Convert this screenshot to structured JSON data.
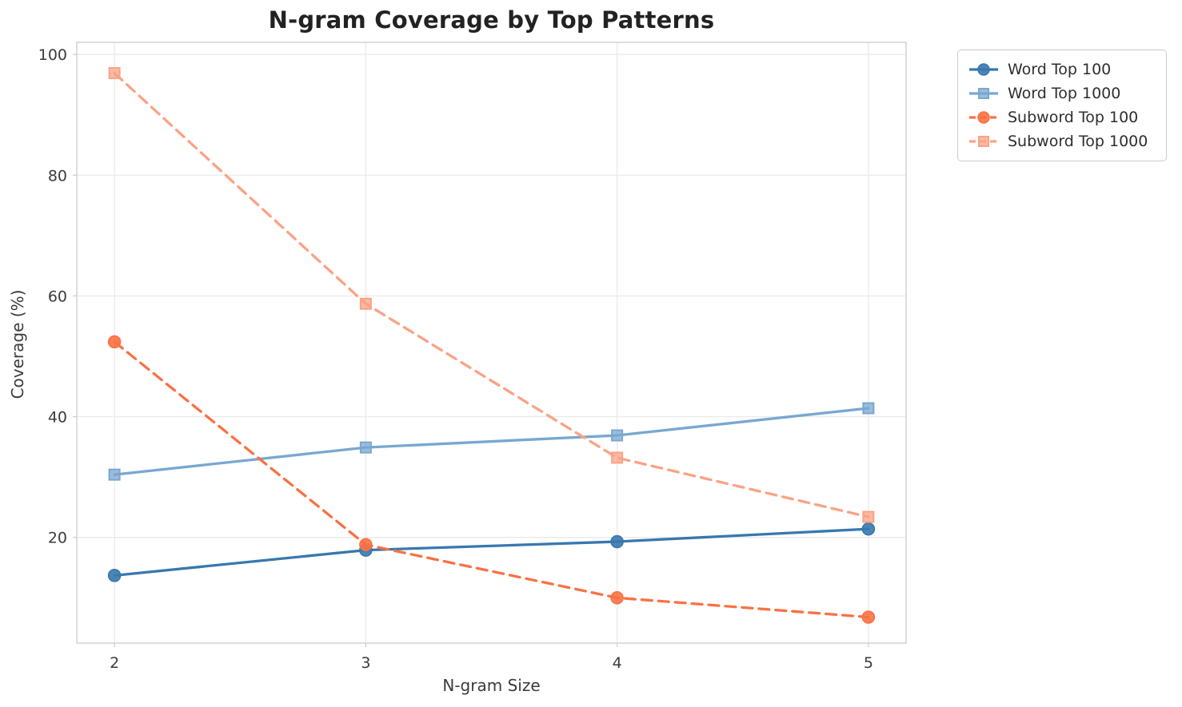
{
  "title": "N-gram Coverage by Top Patterns",
  "chart_data": {
    "type": "line",
    "title": "N-gram Coverage by Top Patterns",
    "xlabel": "N-gram Size",
    "ylabel": "Coverage (%)",
    "x": [
      2,
      3,
      4,
      5
    ],
    "xticks": [
      2,
      3,
      4,
      5
    ],
    "yticks": [
      20,
      40,
      60,
      80,
      100
    ],
    "xlim": [
      1.85,
      5.15
    ],
    "ylim": [
      2.5,
      102
    ],
    "grid": true,
    "legend_position": "upper right outside plot",
    "series": [
      {
        "name": "Word Top 100",
        "values": [
          13.7,
          17.9,
          19.3,
          21.4
        ],
        "color": "#3778ae",
        "marker": "circle",
        "line_style": "solid"
      },
      {
        "name": "Word Top 1000",
        "values": [
          30.4,
          34.9,
          36.9,
          41.4
        ],
        "color": "#79a7d1",
        "marker": "square",
        "line_style": "solid"
      },
      {
        "name": "Subword Top 100",
        "values": [
          52.4,
          18.8,
          10.0,
          6.8
        ],
        "color": "#fa7144",
        "marker": "circle",
        "line_style": "dashed"
      },
      {
        "name": "Subword Top 1000",
        "values": [
          96.9,
          58.7,
          33.2,
          23.4
        ],
        "color": "#fba285",
        "marker": "square",
        "line_style": "dashed"
      }
    ],
    "colors": {
      "grid": "#ebebeb",
      "spine": "#cccccc",
      "tick_label": "#3b3b3b",
      "title_text": "#222222"
    }
  }
}
